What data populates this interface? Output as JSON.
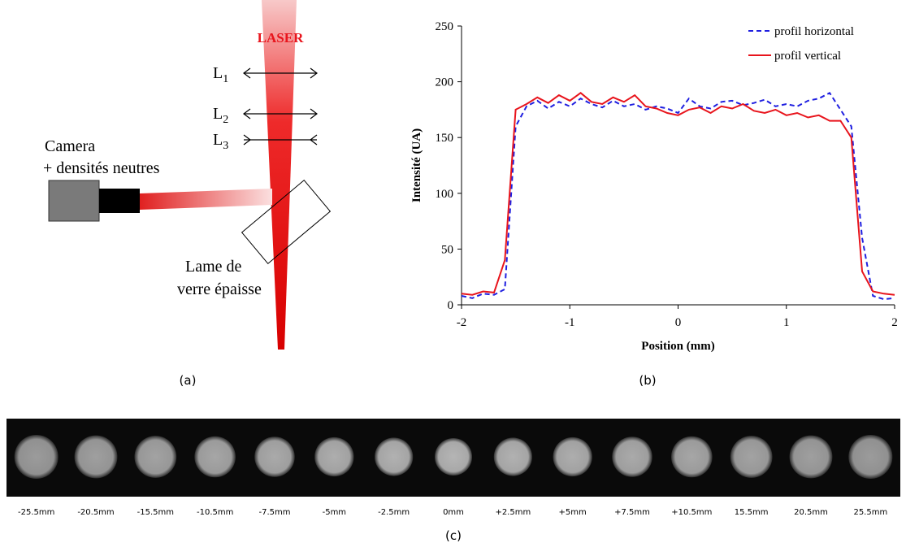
{
  "diagram": {
    "laser": "LASER",
    "lenses": [
      {
        "letter": "L",
        "sub": "1"
      },
      {
        "letter": "L",
        "sub": "2"
      },
      {
        "letter": "L",
        "sub": "3"
      }
    ],
    "camera": [
      "Camera",
      "+ densités neutres"
    ],
    "plate": [
      "Lame de",
      "verre épaisse"
    ]
  },
  "panels": [
    "(a)",
    "(b)",
    "(c)"
  ],
  "strip_labels": [
    "-25.5mm",
    "-20.5mm",
    "-15.5mm",
    "-10.5mm",
    "-7.5mm",
    "-5mm",
    "-2.5mm",
    "0mm",
    "+2.5mm",
    "+5mm",
    "+7.5mm",
    "+10.5mm",
    "15.5mm",
    "20.5mm",
    "25.5mm"
  ],
  "chart_data": {
    "type": "line",
    "x_label": "Position (mm)",
    "y_label": "Intensité  (UA)",
    "x": [
      -2,
      -1.9,
      -1.8,
      -1.7,
      -1.6,
      -1.5,
      -1.4,
      -1.3,
      -1.2,
      -1.1,
      -1,
      -0.9,
      -0.8,
      -0.7,
      -0.6,
      -0.5,
      -0.4,
      -0.3,
      -0.2,
      -0.1,
      0,
      0.1,
      0.2,
      0.3,
      0.4,
      0.5,
      0.6,
      0.7,
      0.8,
      0.9,
      1,
      1.1,
      1.2,
      1.3,
      1.4,
      1.5,
      1.6,
      1.7,
      1.8,
      1.9,
      2
    ],
    "series": [
      {
        "name": "profil horizontal",
        "color": "#1f1fe0",
        "dash": true,
        "values": [
          8,
          6,
          10,
          9,
          14,
          160,
          178,
          183,
          176,
          182,
          178,
          185,
          180,
          177,
          183,
          178,
          180,
          175,
          178,
          176,
          172,
          185,
          178,
          176,
          182,
          183,
          179,
          181,
          184,
          178,
          180,
          178,
          183,
          185,
          190,
          175,
          160,
          60,
          8,
          5,
          6
        ]
      },
      {
        "name": "profil vertical",
        "color": "#e8141c",
        "dash": false,
        "values": [
          10,
          9,
          12,
          11,
          40,
          175,
          180,
          186,
          181,
          188,
          183,
          190,
          182,
          180,
          186,
          182,
          188,
          178,
          176,
          172,
          170,
          175,
          177,
          172,
          178,
          176,
          180,
          174,
          172,
          175,
          170,
          172,
          168,
          170,
          165,
          165,
          150,
          30,
          12,
          10,
          9
        ]
      }
    ],
    "xlim": [
      -2,
      2
    ],
    "xticks": [
      -2,
      -1,
      0,
      1,
      2
    ],
    "ylim": [
      0,
      250
    ],
    "yticks": [
      0,
      50,
      100,
      150,
      200,
      250
    ],
    "legend": "top-right"
  }
}
